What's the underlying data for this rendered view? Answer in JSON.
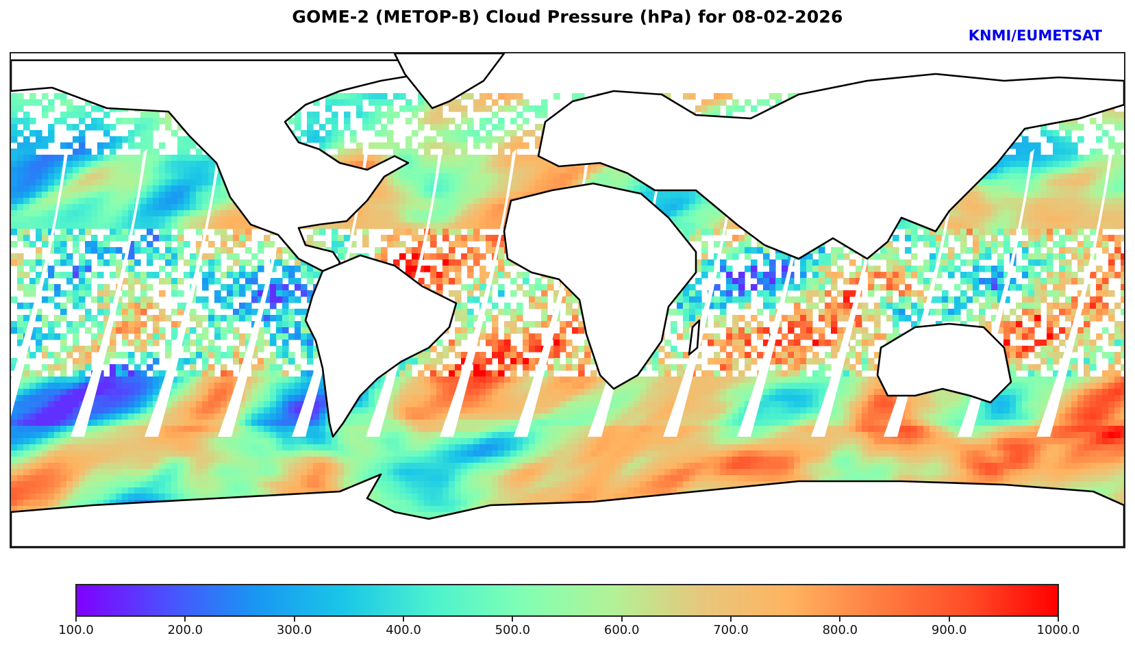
{
  "figure": {
    "title": "GOME-2 (METOP-B) Cloud Pressure (hPa) for 08-02-2026",
    "credit": "KNMI/EUMETSAT",
    "credit_color": "#0000ee"
  },
  "map": {
    "projection": "plate-carree",
    "variable": "Cloud Pressure",
    "units": "hPa",
    "date": "08-02-2026",
    "instrument": "GOME-2",
    "platform": "METOP-B",
    "coastline_color": "#000000",
    "missing_data_color": "#ffffff"
  },
  "colorbar": {
    "min": 100.0,
    "max": 1000.0,
    "colormap": "rainbow",
    "stops": [
      "#8000ff",
      "#4c4ffe",
      "#1996f3",
      "#1ac7e7",
      "#4cf2ce",
      "#80ffb4",
      "#b2f296",
      "#e6c77c",
      "#ffb360",
      "#ff7d41",
      "#ff4c27",
      "#ff0000"
    ],
    "ticks": [
      {
        "value": 100.0,
        "label": "100.0"
      },
      {
        "value": 200.0,
        "label": "200.0"
      },
      {
        "value": 300.0,
        "label": "300.0"
      },
      {
        "value": 400.0,
        "label": "400.0"
      },
      {
        "value": 500.0,
        "label": "500.0"
      },
      {
        "value": 600.0,
        "label": "600.0"
      },
      {
        "value": 700.0,
        "label": "700.0"
      },
      {
        "value": 800.0,
        "label": "800.0"
      },
      {
        "value": 900.0,
        "label": "900.0"
      },
      {
        "value": 1000.0,
        "label": "1000.0"
      }
    ]
  }
}
